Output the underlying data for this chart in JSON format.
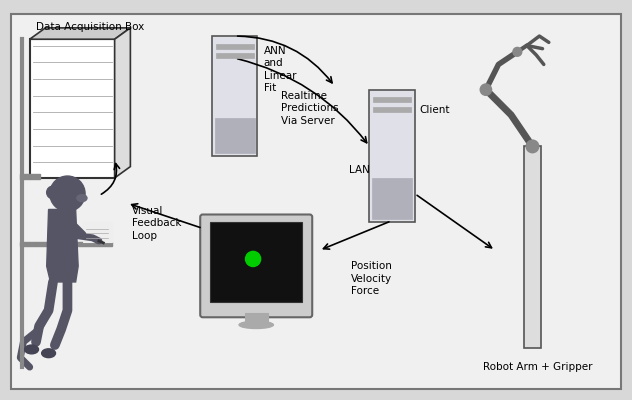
{
  "bg_color": "#d8d8d8",
  "inner_bg": "#f0f0f0",
  "border_color": "#777777",
  "labels": {
    "data_acq": "Data Acquisition Box",
    "ann": "ANN\nand\nLinear\nFit",
    "realtime": "Realtime\nPredictions\nVia Server",
    "client": "Client",
    "lan": "LAN",
    "visual_fb": "Visual\nFeedback\nLoop",
    "pos_vel": "Position\nVelocity\nForce",
    "robot": "Robot Arm + Gripper"
  },
  "text_color": "#000000",
  "arrow_color": "#000000",
  "green_dot": "#00cc00",
  "figure_size": [
    6.32,
    4.0
  ],
  "dpi": 100
}
